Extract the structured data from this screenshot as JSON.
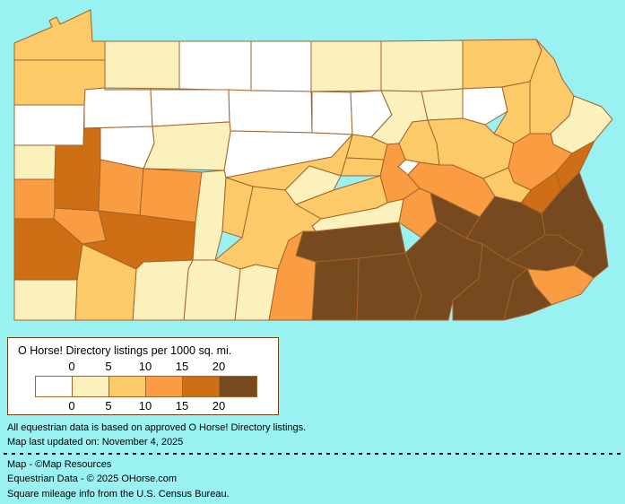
{
  "background_color": "#9AF1F1",
  "legend": {
    "title": "O Horse! Directory listings per 1000 sq. mi.",
    "ticks_top": [
      "0",
      "5",
      "10",
      "15",
      "20"
    ],
    "ticks_bottom": [
      "0",
      "5",
      "10",
      "15",
      "20"
    ],
    "colors": [
      "#FFFFFF",
      "#FAF1BD",
      "#FDCA69",
      "#F99C42",
      "#CE6E15",
      "#77491E"
    ],
    "bin_ranges": [
      "0",
      "0-5",
      "5-10",
      "10-15",
      "15-20",
      "20+"
    ],
    "border_color": "#6E4017",
    "swatch_border_color": "#A4622B"
  },
  "map": {
    "name": "pennsylvania-county-choropleth",
    "county_border_color": "#A4622B",
    "water_color": "#9AF1F1",
    "counties": [
      {
        "id": "erie",
        "bin": 2
      },
      {
        "id": "crawford",
        "bin": 2
      },
      {
        "id": "warren",
        "bin": 1
      },
      {
        "id": "mckean",
        "bin": 0
      },
      {
        "id": "potter",
        "bin": 0
      },
      {
        "id": "tioga",
        "bin": 1
      },
      {
        "id": "bradford",
        "bin": 1
      },
      {
        "id": "susquehanna",
        "bin": 2
      },
      {
        "id": "wayne",
        "bin": 2
      },
      {
        "id": "pike",
        "bin": 1
      },
      {
        "id": "mercer",
        "bin": 0
      },
      {
        "id": "venango",
        "bin": 0
      },
      {
        "id": "forest",
        "bin": 0
      },
      {
        "id": "elk",
        "bin": 0
      },
      {
        "id": "cameron",
        "bin": 0
      },
      {
        "id": "clinton",
        "bin": 0
      },
      {
        "id": "lycoming",
        "bin": 1
      },
      {
        "id": "sullivan",
        "bin": 1
      },
      {
        "id": "wyoming",
        "bin": 0
      },
      {
        "id": "lackawanna",
        "bin": 2
      },
      {
        "id": "luzerne",
        "bin": 2
      },
      {
        "id": "columbia",
        "bin": 2
      },
      {
        "id": "montour",
        "bin": 0
      },
      {
        "id": "northumberland",
        "bin": 3
      },
      {
        "id": "union",
        "bin": 2
      },
      {
        "id": "snyder",
        "bin": 2
      },
      {
        "id": "clearfield",
        "bin": 0
      },
      {
        "id": "centre",
        "bin": 2
      },
      {
        "id": "mifflin",
        "bin": 1
      },
      {
        "id": "juniata",
        "bin": 2
      },
      {
        "id": "perry",
        "bin": 1
      },
      {
        "id": "huntingdon",
        "bin": 2
      },
      {
        "id": "dauphin",
        "bin": 3
      },
      {
        "id": "schuylkill",
        "bin": 3
      },
      {
        "id": "lebanon",
        "bin": 5
      },
      {
        "id": "berks",
        "bin": 5
      },
      {
        "id": "lehigh",
        "bin": 4
      },
      {
        "id": "northampton",
        "bin": 4
      },
      {
        "id": "carbon",
        "bin": 2
      },
      {
        "id": "monroe",
        "bin": 3
      },
      {
        "id": "bucks",
        "bin": 5
      },
      {
        "id": "montgomery",
        "bin": 5
      },
      {
        "id": "philadelphia",
        "bin": 3
      },
      {
        "id": "delaware",
        "bin": 5
      },
      {
        "id": "chester",
        "bin": 5
      },
      {
        "id": "lancaster",
        "bin": 5
      },
      {
        "id": "york",
        "bin": 5
      },
      {
        "id": "adams",
        "bin": 5
      },
      {
        "id": "cumberland",
        "bin": 5
      },
      {
        "id": "franklin",
        "bin": 3
      },
      {
        "id": "fulton",
        "bin": 1
      },
      {
        "id": "bedford",
        "bin": 1
      },
      {
        "id": "somerset",
        "bin": 1
      },
      {
        "id": "fayette",
        "bin": 2
      },
      {
        "id": "greene",
        "bin": 1
      },
      {
        "id": "washington",
        "bin": 4
      },
      {
        "id": "westmoreland",
        "bin": 4
      },
      {
        "id": "allegheny",
        "bin": 3
      },
      {
        "id": "beaver",
        "bin": 3
      },
      {
        "id": "lawrence",
        "bin": 1
      },
      {
        "id": "butler",
        "bin": 4
      },
      {
        "id": "clarion",
        "bin": 0
      },
      {
        "id": "armstrong",
        "bin": 3
      },
      {
        "id": "indiana",
        "bin": 3
      },
      {
        "id": "jefferson",
        "bin": 1
      },
      {
        "id": "cambria",
        "bin": 1
      },
      {
        "id": "blair",
        "bin": 2
      }
    ]
  },
  "footer": {
    "line1": "All equestrian data is based on approved O Horse! Directory listings.",
    "line2": "Map last updated on: November 4, 2025",
    "credit1": "Map - ©Map Resources",
    "credit2": "Equestrian Data - © 2025 OHorse.com",
    "credit3": "Square mileage info from the U.S. Census Bureau."
  }
}
